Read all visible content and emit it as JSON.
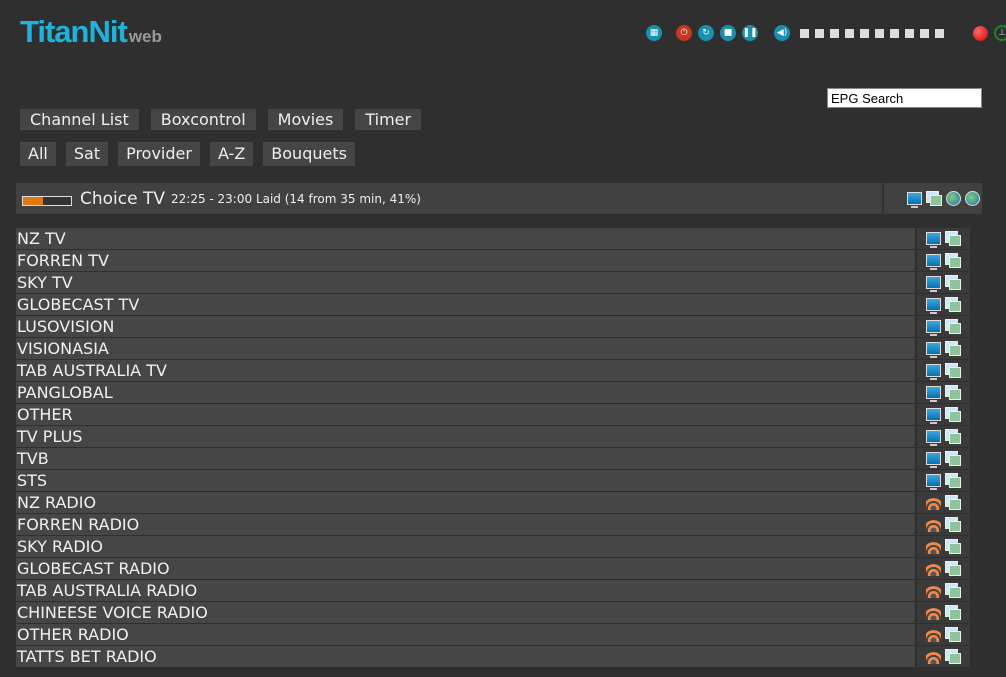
{
  "logo": {
    "main": "TitanNit",
    "sub": "web"
  },
  "controls": {
    "icons": [
      "remote-icon",
      "power-icon",
      "restart-icon",
      "stop-icon",
      "pause-icon",
      "volume-icon"
    ],
    "volume_level": 0,
    "volume_steps": 10,
    "record_color": "#d00000"
  },
  "search": {
    "value": "EPG Search"
  },
  "nav": {
    "main": [
      "Channel List",
      "Boxcontrol",
      "Movies",
      "Timer"
    ],
    "sub": [
      "All",
      "Sat",
      "Provider",
      "A-Z",
      "Bouquets"
    ]
  },
  "now_playing": {
    "channel": "Choice TV",
    "info": "22:25 - 23:00 Laid (14 from 35 min, 41%)",
    "progress_percent": 41,
    "progress_color": "#e07a10"
  },
  "bouquets": [
    {
      "name": "NZ TV",
      "type": "tv"
    },
    {
      "name": "FORREN TV",
      "type": "tv"
    },
    {
      "name": "SKY TV",
      "type": "tv"
    },
    {
      "name": "GLOBECAST TV",
      "type": "tv"
    },
    {
      "name": "LUSOVISION",
      "type": "tv"
    },
    {
      "name": "VISIONASIA",
      "type": "tv"
    },
    {
      "name": "TAB AUSTRALIA TV",
      "type": "tv"
    },
    {
      "name": "PANGLOBAL",
      "type": "tv"
    },
    {
      "name": "OTHER",
      "type": "tv"
    },
    {
      "name": "TV PLUS",
      "type": "tv"
    },
    {
      "name": "TVB",
      "type": "tv"
    },
    {
      "name": "STS",
      "type": "tv"
    },
    {
      "name": "NZ RADIO",
      "type": "radio"
    },
    {
      "name": "FORREN RADIO",
      "type": "radio"
    },
    {
      "name": "SKY RADIO",
      "type": "radio"
    },
    {
      "name": "GLOBECAST RADIO",
      "type": "radio"
    },
    {
      "name": "TAB AUSTRALIA RADIO",
      "type": "radio"
    },
    {
      "name": "CHINEESE VOICE RADIO",
      "type": "radio"
    },
    {
      "name": "OTHER RADIO",
      "type": "radio"
    },
    {
      "name": "TATTS BET RADIO",
      "type": "radio"
    }
  ]
}
